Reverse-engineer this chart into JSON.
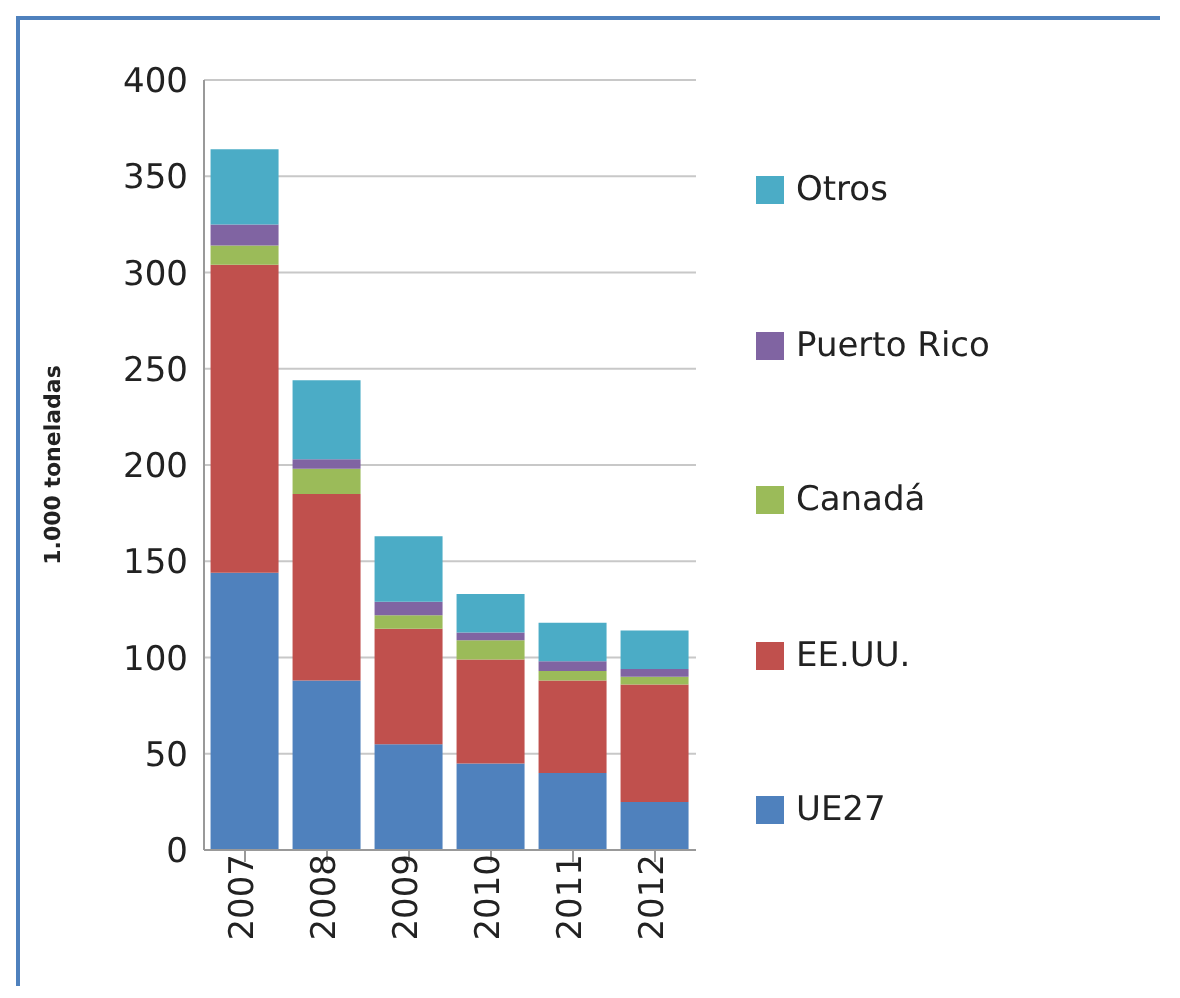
{
  "chart_data": {
    "type": "bar",
    "stacked": true,
    "ylabel": "1.000 toneladas",
    "categories": [
      "2007",
      "2008",
      "2009",
      "2010",
      "2011",
      "2012"
    ],
    "series": [
      {
        "name": "UE27",
        "color": "#4f81bd",
        "values": [
          144,
          88,
          55,
          45,
          40,
          25
        ]
      },
      {
        "name": "EE.UU.",
        "color": "#c0504d",
        "values": [
          160,
          97,
          60,
          54,
          48,
          61
        ]
      },
      {
        "name": "Canadá",
        "color": "#9bbb59",
        "values": [
          10,
          13,
          7,
          10,
          5,
          4
        ]
      },
      {
        "name": "Puerto Rico",
        "color": "#8064a2",
        "values": [
          11,
          5,
          7,
          4,
          5,
          4
        ]
      },
      {
        "name": "Otros",
        "color": "#4bacc6",
        "values": [
          39,
          41,
          34,
          20,
          20,
          20
        ]
      }
    ],
    "ylim": [
      0,
      400
    ],
    "yticks": [
      0,
      50,
      100,
      150,
      200,
      250,
      300,
      350,
      400
    ],
    "grid": "y",
    "legend": "right"
  }
}
